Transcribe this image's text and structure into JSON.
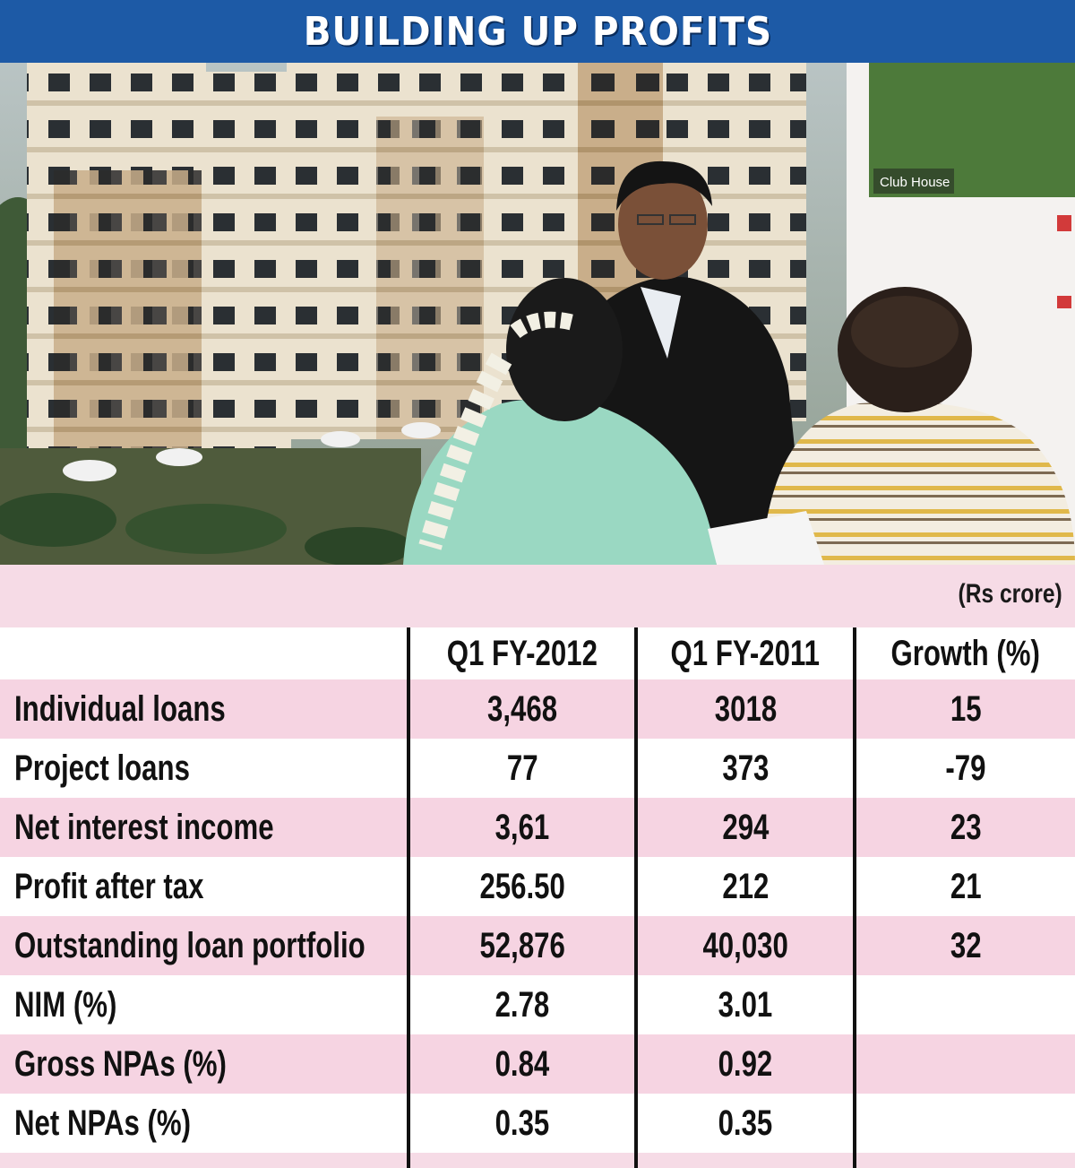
{
  "title": "BUILDING UP PROFITS",
  "photo": {
    "sign_text": "Club House"
  },
  "table": {
    "units": "(Rs crore)",
    "headers": [
      "",
      "Q1 FY-2012",
      "Q1 FY-2011",
      "Growth (%)"
    ],
    "rows": [
      [
        "Individual loans",
        "3,468",
        "3018",
        "15"
      ],
      [
        "Project loans",
        "77",
        "373",
        "-79"
      ],
      [
        "Net interest income",
        "3,61",
        "294",
        "23"
      ],
      [
        "Profit after tax",
        "256.50",
        "212",
        "21"
      ],
      [
        "Outstanding loan portfolio",
        "52,876",
        "40,030",
        "32"
      ],
      [
        "NIM (%)",
        "2.78",
        "3.01",
        ""
      ],
      [
        "Gross NPAs (%)",
        "0.84",
        "0.92",
        ""
      ],
      [
        "Net NPAs (%)",
        "0.35",
        "0.35",
        ""
      ]
    ]
  },
  "colors": {
    "banner": "#1d5aa6",
    "pink_row": "#f6d4e2",
    "table_background": "#f6dbe6"
  }
}
